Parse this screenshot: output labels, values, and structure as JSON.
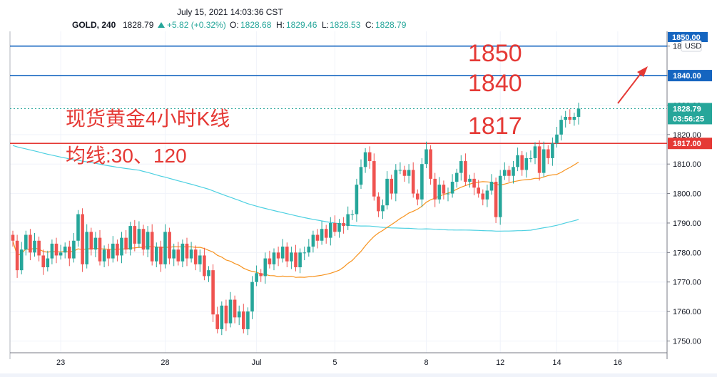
{
  "header": {
    "timestamp": "July 15, 2021 14:03:36 CST",
    "symbol": "GOLD, 240",
    "last": "1828.79",
    "change_icon": "up-triangle-icon",
    "change": "+5.82 (+0.32%)",
    "open_label": "O:",
    "open": "1828.68",
    "high_label": "H:",
    "high": "1829.46",
    "low_label": "L:",
    "low": "1828.53",
    "close_label": "C:",
    "close": "1828.79"
  },
  "currency": "USD",
  "badges": {
    "top": "1850.00",
    "line_1840": "1840.00",
    "last_price": "1828.79",
    "countdown": "03:56:25",
    "line_1817": "1817.00"
  },
  "annotations": {
    "a1850": "1850",
    "a1840": "1840",
    "a1817": "1817",
    "title_cn": "现货黄金4小时K线",
    "ma_cn": "均线:30、120"
  },
  "colors": {
    "up": "#26a69a",
    "down": "#ef5350",
    "ma30": "#f7931e",
    "ma120": "#4dd0e1",
    "line_blue": "#1565c0",
    "line_red": "#e53935",
    "arrow": "#e53935"
  },
  "chart_data": {
    "type": "candlestick",
    "symbol": "GOLD",
    "timeframe": "240",
    "ylim": [
      1746,
      1855
    ],
    "y_ticks": [
      1750,
      1760,
      1770,
      1780,
      1790,
      1800,
      1810,
      1820,
      1830,
      1840,
      1850
    ],
    "y_tick_labels": [
      "1750.00",
      "1760.00",
      "1770.00",
      "1780.00",
      "1790.00",
      "1800.00",
      "1810.00",
      "1820.00",
      "1830.00",
      "1840.00",
      "1850.00"
    ],
    "x_ticks": [
      {
        "label": "23",
        "index": 11
      },
      {
        "label": "28",
        "index": 35
      },
      {
        "label": "Jul",
        "index": 56
      },
      {
        "label": "5",
        "index": 74
      },
      {
        "label": "8",
        "index": 95
      },
      {
        "label": "12",
        "index": 112
      },
      {
        "label": "14",
        "index": 125
      },
      {
        "label": "16",
        "index": 139
      }
    ],
    "horizontal_lines": [
      {
        "price": 1850,
        "color": "#1565c0"
      },
      {
        "price": 1840,
        "color": "#1565c0"
      },
      {
        "price": 1817,
        "color": "#e53935"
      }
    ],
    "last_price": 1828.79,
    "closes": [
      1784,
      1774,
      1781,
      1786,
      1780,
      1784,
      1779,
      1775,
      1778,
      1783,
      1779,
      1780,
      1782,
      1778,
      1784,
      1793,
      1776,
      1787,
      1781,
      1785,
      1777,
      1781,
      1778,
      1783,
      1779,
      1785,
      1781,
      1789,
      1783,
      1788,
      1781,
      1787,
      1777,
      1782,
      1776,
      1787,
      1778,
      1781,
      1777,
      1783,
      1778,
      1781,
      1776,
      1779,
      1772,
      1774,
      1759,
      1754,
      1762,
      1756,
      1764,
      1758,
      1760,
      1754,
      1760,
      1770,
      1773,
      1772,
      1778,
      1776,
      1780,
      1778,
      1782,
      1777,
      1780,
      1775,
      1780,
      1780,
      1782,
      1786,
      1784,
      1788,
      1785,
      1790,
      1787,
      1790,
      1789,
      1793,
      1793,
      1803,
      1809,
      1814,
      1811,
      1799,
      1794,
      1796,
      1805,
      1800,
      1808,
      1808,
      1806,
      1808,
      1800,
      1798,
      1810,
      1815,
      1805,
      1798,
      1803,
      1800,
      1800,
      1804,
      1807,
      1811,
      1804,
      1805,
      1802,
      1800,
      1798,
      1801,
      1804,
      1792,
      1806,
      1808,
      1806,
      1809,
      1813,
      1808,
      1812,
      1812,
      1816,
      1807,
      1815,
      1812,
      1817,
      1820,
      1825,
      1826,
      1825,
      1826,
      1828.79
    ],
    "ma30_label": "MA 30",
    "ma120_label": "MA 120"
  }
}
